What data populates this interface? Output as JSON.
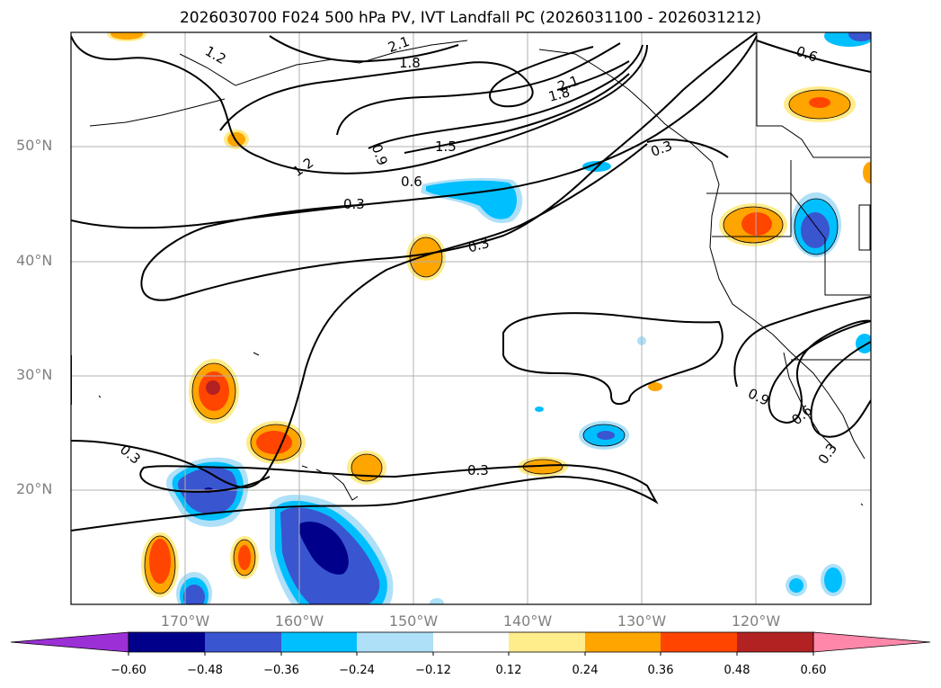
{
  "title": "2026030700 F024 500 hPa PV, IVT Landfall PC (2026031100 - 2026031212)",
  "map": {
    "projection": "PlateCarree",
    "lon_range": [
      "180°",
      "110°W"
    ],
    "lat_range": [
      "10°N",
      "60°N"
    ],
    "gridlines": true,
    "coastlines": true,
    "borders": true
  },
  "lat_labels": [
    "50°N",
    "40°N",
    "30°N",
    "20°N"
  ],
  "lon_labels": [
    "170°W",
    "160°W",
    "150°W",
    "140°W",
    "130°W",
    "120°W"
  ],
  "contour_labels": [
    "1.2",
    "2.1",
    "1.8",
    "2.1",
    "1.8",
    "0.6",
    "1.2",
    "0.9",
    "1.5",
    "0.6",
    "0.3",
    "0.3",
    "0.3",
    "0.3",
    "0.3",
    "0.9",
    "0.6",
    "0.3"
  ],
  "colorbar": {
    "ticks": [
      "−0.60",
      "−0.48",
      "−0.36",
      "−0.24",
      "−0.12",
      "0.12",
      "0.24",
      "0.36",
      "0.48",
      "0.60"
    ],
    "colors": [
      "#9b30d6",
      "#00008b",
      "#3a55d0",
      "#00bfff",
      "#aee0f8",
      "#ffffff",
      "#ffec8b",
      "#ffa500",
      "#ff4500",
      "#b22222",
      "#ff88aa"
    ],
    "extend": "both"
  }
}
